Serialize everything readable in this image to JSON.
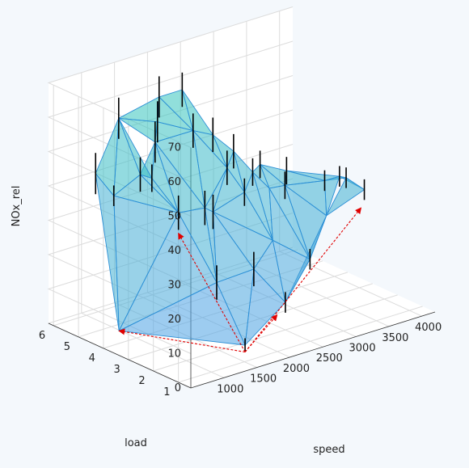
{
  "chart_data": {
    "type": "surface",
    "xlabel": "speed",
    "ylabel": "load",
    "zlabel": "NOx_rel",
    "x_range": [
      500,
      4200
    ],
    "y_range": [
      0.5,
      6.2
    ],
    "z_range": [
      0,
      70
    ],
    "x_ticks": [
      1000,
      1500,
      2000,
      2500,
      3000,
      3500,
      4000
    ],
    "y_ticks": [
      1,
      2,
      3,
      4,
      5,
      6
    ],
    "z_ticks": [
      0,
      10,
      20,
      30,
      40,
      50,
      60,
      70
    ],
    "grid": true,
    "points": [
      {
        "speed": 850,
        "load": 4.3,
        "nox": 2
      },
      {
        "speed": 1100,
        "load": 5.9,
        "nox": 41
      },
      {
        "speed": 1300,
        "load": 5.7,
        "nox": 34
      },
      {
        "speed": 1450,
        "load": 5.9,
        "nox": 55
      },
      {
        "speed": 1550,
        "load": 5.3,
        "nox": 40
      },
      {
        "speed": 1650,
        "load": 5.1,
        "nox": 39
      },
      {
        "speed": 1750,
        "load": 4.3,
        "nox": 31
      },
      {
        "speed": 1850,
        "load": 5.5,
        "nox": 47
      },
      {
        "speed": 2000,
        "load": 5.8,
        "nox": 51
      },
      {
        "speed": 2100,
        "load": 6.0,
        "nox": 57
      },
      {
        "speed": 2150,
        "load": 4.3,
        "nox": 30
      },
      {
        "speed": 1800,
        "load": 2.9,
        "nox": 15
      },
      {
        "speed": 1700,
        "load": 1.5,
        "nox": 2
      },
      {
        "speed": 2350,
        "load": 4.5,
        "nox": 27
      },
      {
        "speed": 2350,
        "load": 5.3,
        "nox": 48
      },
      {
        "speed": 2450,
        "load": 6.0,
        "nox": 57
      },
      {
        "speed": 2650,
        "load": 5.3,
        "nox": 45
      },
      {
        "speed": 2600,
        "load": 4.6,
        "nox": 38
      },
      {
        "speed": 2400,
        "load": 3.0,
        "nox": 15
      },
      {
        "speed": 2500,
        "load": 2.0,
        "nox": 8
      },
      {
        "speed": 2750,
        "load": 4.3,
        "nox": 31
      },
      {
        "speed": 2850,
        "load": 5.0,
        "nox": 40
      },
      {
        "speed": 2800,
        "load": 3.3,
        "nox": 20
      },
      {
        "speed": 2950,
        "load": 4.5,
        "nox": 35
      },
      {
        "speed": 3050,
        "load": 4.1,
        "nox": 31
      },
      {
        "speed": 3100,
        "load": 4.6,
        "nox": 36
      },
      {
        "speed": 3250,
        "load": 4.0,
        "nox": 31
      },
      {
        "speed": 3350,
        "load": 4.2,
        "nox": 34
      },
      {
        "speed": 3100,
        "load": 2.6,
        "nox": 15
      },
      {
        "speed": 3500,
        "load": 3.0,
        "nox": 24
      },
      {
        "speed": 3700,
        "load": 3.6,
        "nox": 31
      },
      {
        "speed": 3850,
        "load": 3.4,
        "nox": 32
      },
      {
        "speed": 3950,
        "load": 3.4,
        "nox": 31
      },
      {
        "speed": 4150,
        "load": 3.2,
        "nox": 27
      }
    ],
    "triangles": [
      [
        0,
        1,
        2
      ],
      [
        1,
        2,
        3
      ],
      [
        2,
        3,
        4
      ],
      [
        3,
        4,
        5
      ],
      [
        0,
        2,
        6
      ],
      [
        2,
        4,
        6
      ],
      [
        4,
        5,
        6
      ],
      [
        5,
        6,
        7
      ],
      [
        4,
        5,
        7
      ],
      [
        3,
        7,
        8
      ],
      [
        3,
        8,
        9
      ],
      [
        7,
        8,
        9
      ],
      [
        6,
        7,
        10
      ],
      [
        7,
        10,
        14
      ],
      [
        8,
        9,
        14
      ],
      [
        9,
        14,
        15
      ],
      [
        8,
        14,
        7
      ],
      [
        0,
        6,
        11
      ],
      [
        0,
        11,
        12
      ],
      [
        6,
        10,
        11
      ],
      [
        10,
        11,
        13
      ],
      [
        11,
        12,
        18
      ],
      [
        11,
        13,
        18
      ],
      [
        12,
        18,
        19
      ],
      [
        10,
        13,
        17
      ],
      [
        10,
        14,
        17
      ],
      [
        14,
        15,
        16
      ],
      [
        14,
        16,
        17
      ],
      [
        13,
        17,
        20
      ],
      [
        13,
        18,
        22
      ],
      [
        18,
        19,
        22
      ],
      [
        17,
        20,
        21
      ],
      [
        16,
        17,
        21
      ],
      [
        13,
        20,
        22
      ],
      [
        20,
        22,
        23
      ],
      [
        20,
        21,
        23
      ],
      [
        22,
        23,
        24
      ],
      [
        23,
        24,
        25
      ],
      [
        19,
        22,
        28
      ],
      [
        22,
        24,
        28
      ],
      [
        24,
        25,
        26
      ],
      [
        25,
        26,
        27
      ],
      [
        24,
        26,
        28
      ],
      [
        26,
        28,
        29
      ],
      [
        26,
        27,
        30
      ],
      [
        26,
        29,
        30
      ],
      [
        28,
        29,
        19
      ],
      [
        29,
        30,
        31
      ],
      [
        30,
        31,
        32
      ],
      [
        29,
        32,
        33
      ],
      [
        31,
        32,
        33
      ],
      [
        30,
        27,
        31
      ]
    ],
    "error_bars": [
      {
        "speed": 1100,
        "load": 5.9,
        "low": 35,
        "high": 47
      },
      {
        "speed": 1300,
        "load": 5.7,
        "low": 31,
        "high": 37
      },
      {
        "speed": 1450,
        "load": 5.9,
        "low": 49,
        "high": 61
      },
      {
        "speed": 1550,
        "load": 5.3,
        "low": 35,
        "high": 45
      },
      {
        "speed": 1650,
        "load": 5.1,
        "low": 35,
        "high": 43
      },
      {
        "speed": 1750,
        "load": 4.3,
        "low": 26,
        "high": 36
      },
      {
        "speed": 1850,
        "load": 5.5,
        "low": 41,
        "high": 53
      },
      {
        "speed": 2000,
        "load": 5.8,
        "low": 45,
        "high": 57
      },
      {
        "speed": 2100,
        "load": 6.0,
        "low": 51,
        "high": 63
      },
      {
        "speed": 2150,
        "load": 4.3,
        "low": 25,
        "high": 35
      },
      {
        "speed": 1800,
        "load": 2.9,
        "low": 10,
        "high": 20
      },
      {
        "speed": 1700,
        "load": 1.5,
        "low": 0,
        "high": 4
      },
      {
        "speed": 2350,
        "load": 4.5,
        "low": 22,
        "high": 32
      },
      {
        "speed": 2350,
        "load": 5.3,
        "low": 43,
        "high": 53
      },
      {
        "speed": 2450,
        "load": 6.0,
        "low": 52,
        "high": 62
      },
      {
        "speed": 2650,
        "load": 5.3,
        "low": 40,
        "high": 50
      },
      {
        "speed": 2600,
        "load": 4.6,
        "low": 33,
        "high": 43
      },
      {
        "speed": 2400,
        "load": 3.0,
        "low": 10,
        "high": 20
      },
      {
        "speed": 2500,
        "load": 2.0,
        "low": 5,
        "high": 11
      },
      {
        "speed": 2750,
        "load": 4.3,
        "low": 27,
        "high": 35
      },
      {
        "speed": 2850,
        "load": 5.0,
        "low": 35,
        "high": 45
      },
      {
        "speed": 2950,
        "load": 4.5,
        "low": 31,
        "high": 39
      },
      {
        "speed": 3100,
        "load": 4.6,
        "low": 32,
        "high": 40
      },
      {
        "speed": 3250,
        "load": 4.0,
        "low": 27,
        "high": 35
      },
      {
        "speed": 3350,
        "load": 4.2,
        "low": 30,
        "high": 38
      },
      {
        "speed": 3100,
        "load": 2.6,
        "low": 12,
        "high": 18
      },
      {
        "speed": 3700,
        "load": 3.6,
        "low": 28,
        "high": 34
      },
      {
        "speed": 3850,
        "load": 3.4,
        "low": 29,
        "high": 35
      },
      {
        "speed": 3950,
        "load": 3.4,
        "low": 28,
        "high": 34
      },
      {
        "speed": 4150,
        "load": 3.2,
        "low": 24,
        "high": 30
      }
    ],
    "annotations": [
      {
        "from": {
          "speed": 1700,
          "load": 1.5,
          "nox": 0
        },
        "to": {
          "speed": 850,
          "load": 4.3,
          "nox": 2
        }
      },
      {
        "from": {
          "speed": 1700,
          "load": 1.5,
          "nox": 0
        },
        "to": {
          "speed": 1750,
          "load": 4.3,
          "nox": 25
        }
      },
      {
        "from": {
          "speed": 1700,
          "load": 1.5,
          "nox": 0
        },
        "to": {
          "speed": 2450,
          "load": 2.2,
          "nox": 4
        }
      },
      {
        "from": {
          "speed": 1700,
          "load": 1.5,
          "nox": 0
        },
        "to": {
          "speed": 4100,
          "load": 3.2,
          "nox": 22
        }
      }
    ],
    "colors": {
      "surface_low": "#4f9de8",
      "surface_high": "#33c9b8",
      "edge": "#2b8fd6",
      "error_bar": "#000000",
      "arrow": "#e00000",
      "grid": "#dcdcdc",
      "background": "#f4f8fc"
    }
  }
}
